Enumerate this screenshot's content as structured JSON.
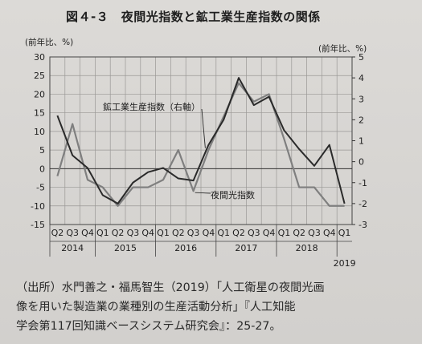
{
  "header": {
    "title": "図４-３　夜間光指数と鉱工業生産指数の関係"
  },
  "chart_data": {
    "type": "line",
    "left_axis_unit": "(前年比、%)",
    "right_axis_unit": "(前年比、%)",
    "left_ylim": [
      -15,
      30
    ],
    "left_ticks": [
      "30",
      "25",
      "20",
      "15",
      "10",
      "5",
      "0",
      "-5",
      "-10",
      "-15"
    ],
    "right_ylim": [
      -3,
      5
    ],
    "right_ticks": [
      "5",
      "4",
      "3",
      "2",
      "1",
      "0",
      "-1",
      "-2",
      "-3"
    ],
    "categories": [
      "Q2",
      "Q3",
      "Q4",
      "Q1",
      "Q2",
      "Q3",
      "Q4",
      "Q1",
      "Q2",
      "Q3",
      "Q4",
      "Q1",
      "Q2",
      "Q3",
      "Q4",
      "Q1",
      "Q2",
      "Q3",
      "Q4",
      "Q1"
    ],
    "year_labels": [
      {
        "label": "2014",
        "span": [
          0,
          2
        ]
      },
      {
        "label": "2015",
        "span": [
          3,
          6
        ]
      },
      {
        "label": "2016",
        "span": [
          7,
          10
        ]
      },
      {
        "label": "2017",
        "span": [
          11,
          14
        ]
      },
      {
        "label": "2018",
        "span": [
          15,
          18
        ]
      },
      {
        "label": "2019",
        "span": [
          19,
          19
        ]
      }
    ],
    "grid": true,
    "series": [
      {
        "name": "夜間光指数",
        "axis": "left",
        "color": "#7f7f7f",
        "values": [
          -2,
          12,
          -3,
          -5,
          -10,
          -5,
          -5,
          -3,
          5,
          -6,
          5,
          14,
          23,
          18,
          20,
          8,
          -5,
          -5,
          -10,
          -10
        ]
      },
      {
        "name": "鉱工業生産指数（右軸）",
        "axis": "right",
        "color": "#2a2a2a",
        "values": [
          2.2,
          0.3,
          -0.3,
          -1.6,
          -2.0,
          -1.0,
          -0.5,
          -0.3,
          -0.8,
          -0.9,
          0.8,
          2.0,
          4.0,
          2.7,
          3.1,
          1.5,
          0.6,
          -0.2,
          0.8,
          -2.0
        ]
      }
    ],
    "annotations": [
      {
        "text": "鉱工業生産指数（右軸）",
        "series": 1
      },
      {
        "text": "夜間光指数",
        "series": 0
      }
    ]
  },
  "source": {
    "lines": [
      "（出所）水門善之・福馬智生（2019）「人工衛星の夜間光画",
      "像を用いた製造業の業種別の生産活動分析」『人工知能",
      "学会第117回知識ベースシステム研究会』：25-27。"
    ]
  }
}
